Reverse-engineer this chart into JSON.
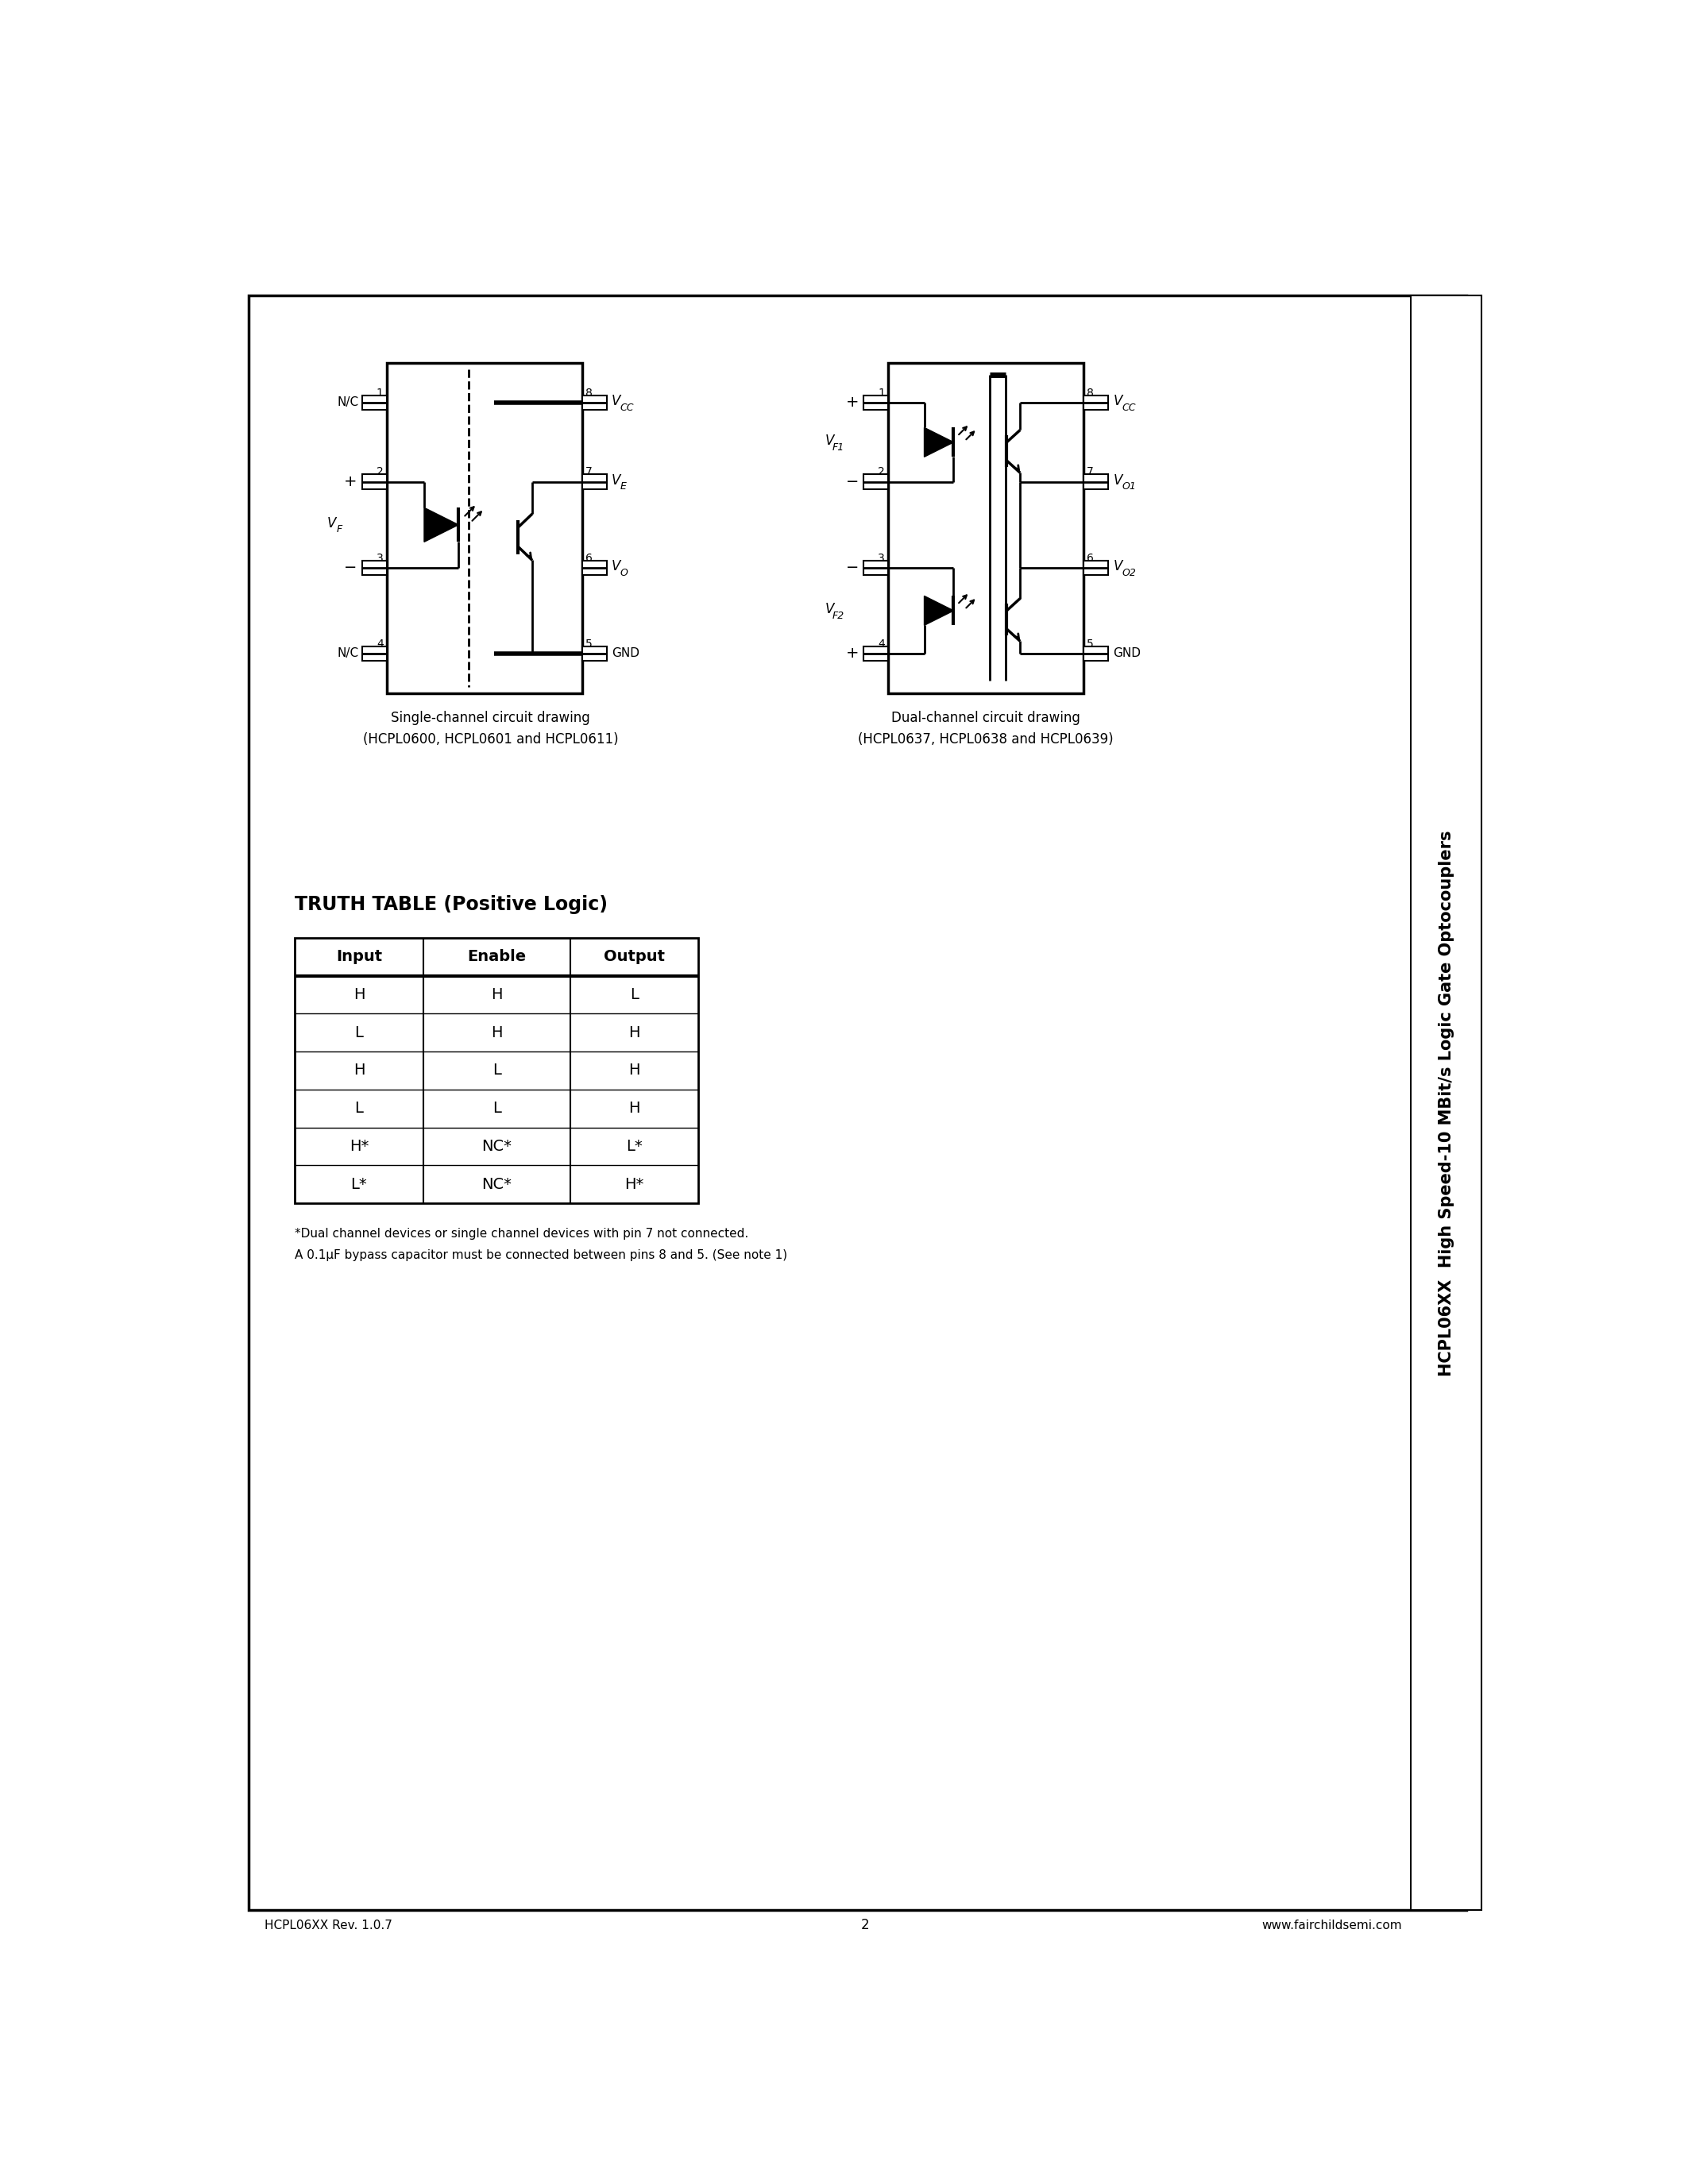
{
  "page_bg": "#ffffff",
  "border_color": "#000000",
  "sidebar_text": "HCPL06XX  High Speed-10 MBit/s Logic Gate Optocouplers",
  "single_channel_caption_line1": "Single-channel circuit drawing",
  "single_channel_caption_line2": "(HCPL0600, HCPL0601 and HCPL0611)",
  "dual_channel_caption_line1": "Dual-channel circuit drawing",
  "dual_channel_caption_line2": "(HCPL0637, HCPL0638 and HCPL0639)",
  "truth_table_title": "TRUTH TABLE (Positive Logic)",
  "truth_table_headers": [
    "Input",
    "Enable",
    "Output"
  ],
  "truth_table_rows": [
    [
      "H",
      "H",
      "L"
    ],
    [
      "L",
      "H",
      "H"
    ],
    [
      "H",
      "L",
      "H"
    ],
    [
      "L",
      "L",
      "H"
    ],
    [
      "H*",
      "NC*",
      "L*"
    ],
    [
      "L*",
      "NC*",
      "H*"
    ]
  ],
  "footnote_line1": "*Dual channel devices or single channel devices with pin 7 not connected.",
  "footnote_line2": "A 0.1μF bypass capacitor must be connected between pins 8 and 5. (See note 1)",
  "footer_left": "HCPL06XX Rev. 1.0.7",
  "footer_center": "2",
  "footer_right": "www.fairchildsemi.com"
}
